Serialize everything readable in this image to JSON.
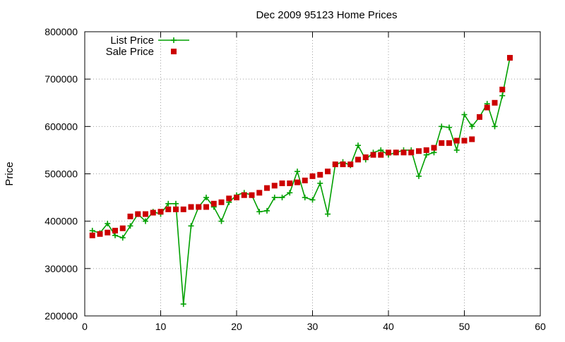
{
  "chart_data": {
    "type": "line",
    "title": "Dec 2009 95123 Home Prices",
    "xlabel": "",
    "ylabel": "Price",
    "xlim": [
      0,
      60
    ],
    "ylim": [
      200000,
      800000
    ],
    "x_ticks": [
      0,
      10,
      20,
      30,
      40,
      50,
      60
    ],
    "y_ticks": [
      200000,
      300000,
      400000,
      500000,
      600000,
      700000,
      800000
    ],
    "grid": true,
    "legend_position": "top-left",
    "series": [
      {
        "name": "List Price",
        "style": "line-plus",
        "color": "#00a000",
        "x": [
          1,
          2,
          3,
          4,
          5,
          6,
          7,
          8,
          9,
          10,
          11,
          12,
          13,
          14,
          15,
          16,
          17,
          18,
          19,
          20,
          21,
          22,
          23,
          24,
          25,
          26,
          27,
          28,
          29,
          30,
          31,
          32,
          33,
          34,
          35,
          36,
          37,
          38,
          39,
          40,
          41,
          42,
          43,
          44,
          45,
          46,
          47,
          48,
          49,
          50,
          51,
          52,
          53,
          54,
          55,
          56
        ],
        "values": [
          380000,
          375000,
          395000,
          370000,
          365000,
          390000,
          415000,
          400000,
          420000,
          415000,
          437000,
          437000,
          225000,
          390000,
          430000,
          450000,
          430000,
          400000,
          440000,
          455000,
          460000,
          455000,
          420000,
          422000,
          450000,
          450000,
          460000,
          505000,
          450000,
          445000,
          480000,
          415000,
          520000,
          525000,
          518000,
          560000,
          530000,
          545000,
          550000,
          540000,
          545000,
          550000,
          550000,
          495000,
          540000,
          545000,
          600000,
          598000,
          550000,
          625000,
          600000,
          620000,
          648000,
          600000,
          665000,
          745000
        ]
      },
      {
        "name": "Sale Price",
        "style": "square",
        "color": "#cc0000",
        "x": [
          1,
          2,
          3,
          4,
          5,
          6,
          7,
          8,
          9,
          10,
          11,
          12,
          13,
          14,
          15,
          16,
          17,
          18,
          19,
          20,
          21,
          22,
          23,
          24,
          25,
          26,
          27,
          28,
          29,
          30,
          31,
          32,
          33,
          34,
          35,
          36,
          37,
          38,
          39,
          40,
          41,
          42,
          43,
          44,
          45,
          46,
          47,
          48,
          49,
          50,
          51,
          52,
          53,
          54,
          55,
          56
        ],
        "values": [
          370000,
          373000,
          376000,
          380000,
          385000,
          410000,
          415000,
          415000,
          418000,
          420000,
          425000,
          425000,
          425000,
          430000,
          430000,
          430000,
          437000,
          440000,
          448000,
          450000,
          455000,
          455000,
          460000,
          470000,
          475000,
          480000,
          480000,
          482000,
          486000,
          495000,
          498000,
          505000,
          520000,
          520000,
          520000,
          530000,
          535000,
          540000,
          540000,
          545000,
          545000,
          545000,
          545000,
          548000,
          550000,
          555000,
          565000,
          565000,
          570000,
          570000,
          573000,
          620000,
          640000,
          650000,
          678000,
          745000
        ]
      }
    ]
  }
}
